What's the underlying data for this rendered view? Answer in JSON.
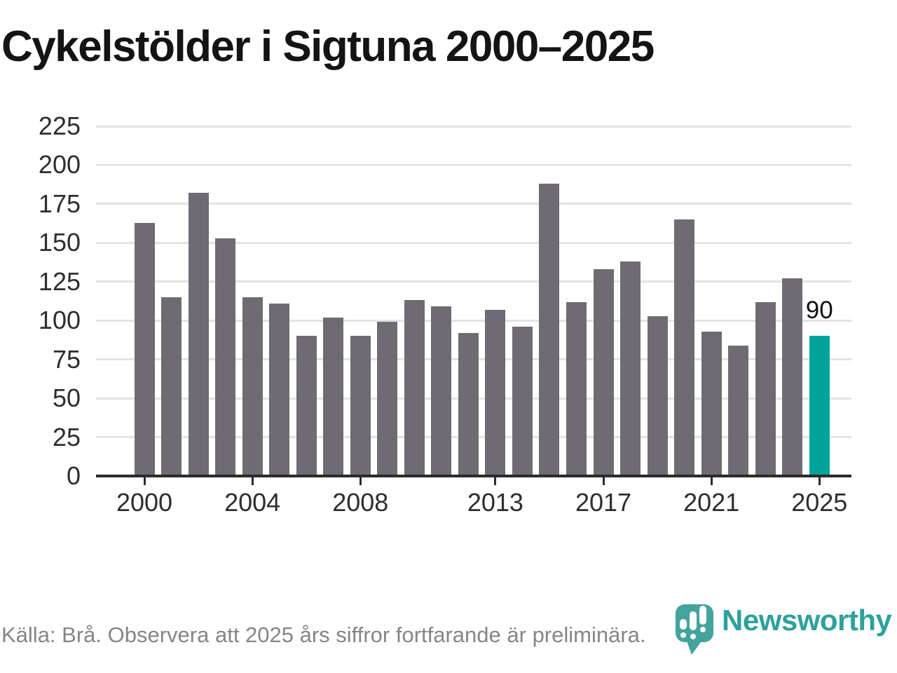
{
  "chart_data": {
    "type": "bar",
    "title": "Cykelstölder i Sigtuna 2000–2025",
    "categories": [
      "2000",
      "2001",
      "2002",
      "2003",
      "2004",
      "2005",
      "2006",
      "2007",
      "2008",
      "2009",
      "2010",
      "2011",
      "2012",
      "2013",
      "2014",
      "2015",
      "2016",
      "2017",
      "2018",
      "2019",
      "2020",
      "2021",
      "2022",
      "2023",
      "2024",
      "2025"
    ],
    "values": [
      163,
      115,
      182,
      153,
      115,
      111,
      90,
      102,
      90,
      99,
      113,
      109,
      92,
      107,
      96,
      188,
      112,
      133,
      138,
      103,
      165,
      93,
      84,
      112,
      127,
      90
    ],
    "xlabel": "",
    "ylabel": "",
    "ylim": [
      0,
      225
    ],
    "y_ticks": [
      0,
      25,
      50,
      75,
      100,
      125,
      150,
      175,
      200,
      225
    ],
    "x_tick_labels": [
      "2000",
      "2004",
      "2008",
      "2013",
      "2017",
      "2021",
      "2025"
    ],
    "grid": "horizontal-only",
    "legend": "none",
    "bar_color": "#6e6c72",
    "highlight_index": 25,
    "highlight_color": "#00a49b",
    "highlight_value_label": "90"
  },
  "footer": {
    "source_note": "Källa: Brå. Observera att 2025 års siffror fortfarande är preliminära."
  },
  "branding": {
    "wordmark": "Newsworthy",
    "wordmark_color": "#2ca29b",
    "icon_name": "newsworthy-speech-bubble-bar-chart-icon",
    "icon_color": "#44a49d"
  },
  "colors": {
    "background": "#ffffff",
    "title_text": "#141414",
    "axis_line": "#2b2b2b",
    "tick_label_text": "#2e2e2e",
    "gridline": "#e3e3e3",
    "footer_text": "#85858a"
  }
}
